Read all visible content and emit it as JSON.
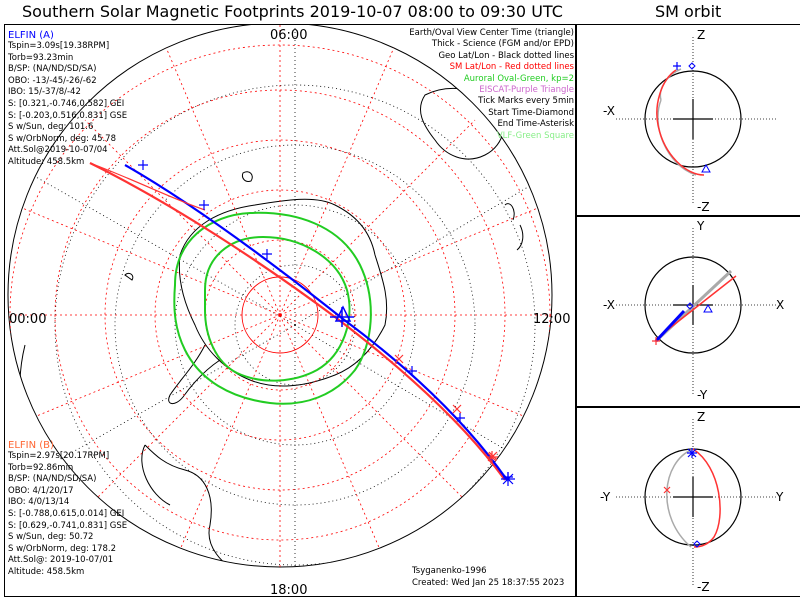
{
  "header": {
    "title": "Southern Solar Magnetic Footprints 2019-10-07 08:00 to 09:30 UTC",
    "sm_title": "SM orbit"
  },
  "map": {
    "lt_labels": {
      "top": "06:00",
      "left": "00:00",
      "right": "12:00",
      "bottom": "18:00"
    },
    "legend": [
      {
        "text": "Earth/Oval View Center Time (triangle)",
        "color": "#000000"
      },
      {
        "text": "Thick - Science (FGM and/or EPD)",
        "color": "#000000"
      },
      {
        "text": "Geo Lat/Lon - Black dotted lines",
        "color": "#000000"
      },
      {
        "text": "SM Lat/Lon - Red dotted lines",
        "color": "#ff0000"
      },
      {
        "text": "Auroral Oval-Green, kp=2",
        "color": "#22cc22"
      },
      {
        "text": "EISCAT-Purple Triangle",
        "color": "#cc66cc"
      },
      {
        "text": "Tick Marks every 5min",
        "color": "#000000"
      },
      {
        "text": "Start Time-Diamond",
        "color": "#000000"
      },
      {
        "text": "End Time-Asterisk",
        "color": "#000000"
      },
      {
        "text": "VLF-Green Square",
        "color": "#88ee88"
      }
    ],
    "elfin_a": {
      "title": "ELFIN (A)",
      "color": "#0000ff",
      "lines": [
        "Tspin=3.09s[19.38RPM]",
        "Torb=93.23min",
        "B/SP: (NA/ND/SD/SA)",
        "OBO: -13/-45/-26/-62",
        "IBO: 15/-37/8/-42",
        "S: [0.321,-0.746,0.582] GEI",
        "S: [-0.203,0.516,0.831] GSE",
        "S w/Sun, deg: 101.6",
        "S w/OrbNorm, deg: 45.78",
        "Att.Sol@2019-10-07/04",
        "Altitude: 458.5km"
      ]
    },
    "elfin_b": {
      "title": "ELFIN (B)",
      "color": "#ff6633",
      "lines": [
        "Tspin=2.97s[20.17RPM]",
        "Torb=92.86min",
        "B/SP: (NA/ND/SD/SA)",
        "OBO: 4/1/20/17",
        "IBO: 4/0/13/14",
        "S: [-0.788,0.615,0.014] GEI",
        "S: [0.629,-0.741,0.831] GSE",
        "S w/Sun, deg: 50.72",
        "S w/OrbNorm, deg: 178.2",
        "Att.Sol@: 2019-10-07/01",
        "Altitude: 458.5km"
      ]
    },
    "model": "Tsyganenko-1996",
    "created": "Created: Wed Jan 25 18:37:55 2023"
  },
  "sm_panels": [
    {
      "name": "xz",
      "top": "Z",
      "bottom": "-Z",
      "left": "-X",
      "right": ""
    },
    {
      "name": "xy",
      "top": "Y",
      "bottom": "-Y",
      "left": "-X",
      "right": "X"
    },
    {
      "name": "yz",
      "top": "Z",
      "bottom": "-Z",
      "left": "-Y",
      "right": "Y"
    }
  ]
}
